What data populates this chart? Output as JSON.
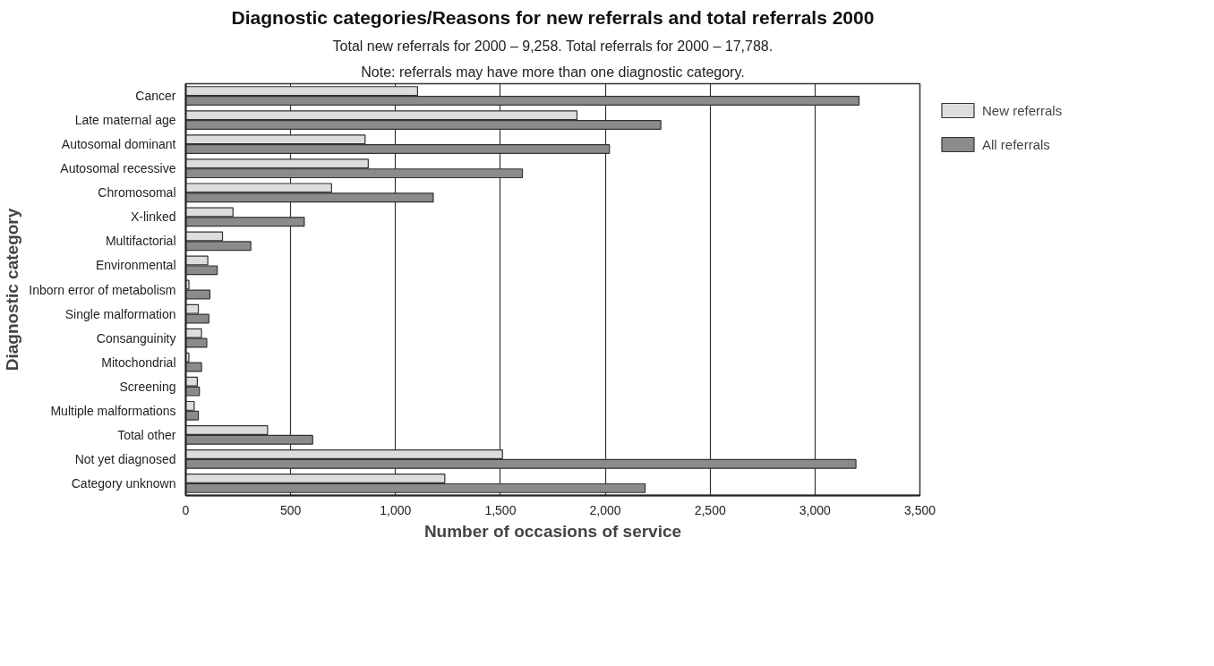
{
  "chart_data": {
    "type": "bar",
    "orientation": "horizontal",
    "title": "Diagnostic categories/Reasons for new referrals and total referrals 2000",
    "subtitle": "Total new referrals for 2000 – 9,258. Total referrals for 2000 – 17,788.",
    "annotations": [
      "Note: referrals may have more than one diagnostic category."
    ],
    "xlabel": "Number of occasions of service",
    "ylabel": "Diagnostic category",
    "categories": [
      "Cancer",
      "Late maternal age",
      "Autosomal dominant",
      "Autosomal recessive",
      "Chromosomal",
      "X-linked",
      "Multifactorial",
      "Environmental",
      "Inborn error of metabolism",
      "Single malformation",
      "Consanguinity",
      "Mitochondrial",
      "Screening",
      "Multiple malformations",
      "Total other",
      "Not yet diagnosed",
      "Category unknown"
    ],
    "series": [
      {
        "name": "New referrals",
        "color": "#dcdddf",
        "values": [
          1105,
          1865,
          855,
          870,
          695,
          225,
          175,
          105,
          15,
          60,
          75,
          15,
          55,
          40,
          390,
          1510,
          1235
        ]
      },
      {
        "name": "All referrals",
        "color": "#8a8b8d",
        "values": [
          3210,
          2265,
          2020,
          1605,
          1180,
          565,
          310,
          150,
          115,
          110,
          100,
          75,
          65,
          60,
          605,
          3195,
          2190
        ]
      }
    ],
    "xlim": [
      0,
      3500
    ],
    "xticks": [
      0,
      500,
      {
        "value": 1000,
        "label": "1,000"
      },
      {
        "value": 1500,
        "label": "1,500"
      },
      {
        "value": 2000,
        "label": "2,000"
      },
      {
        "value": 2500,
        "label": "2,500"
      },
      {
        "value": 3000,
        "label": "3,000"
      },
      {
        "value": 3500,
        "label": "3,500"
      }
    ],
    "grid": "x",
    "legend": "top right"
  }
}
